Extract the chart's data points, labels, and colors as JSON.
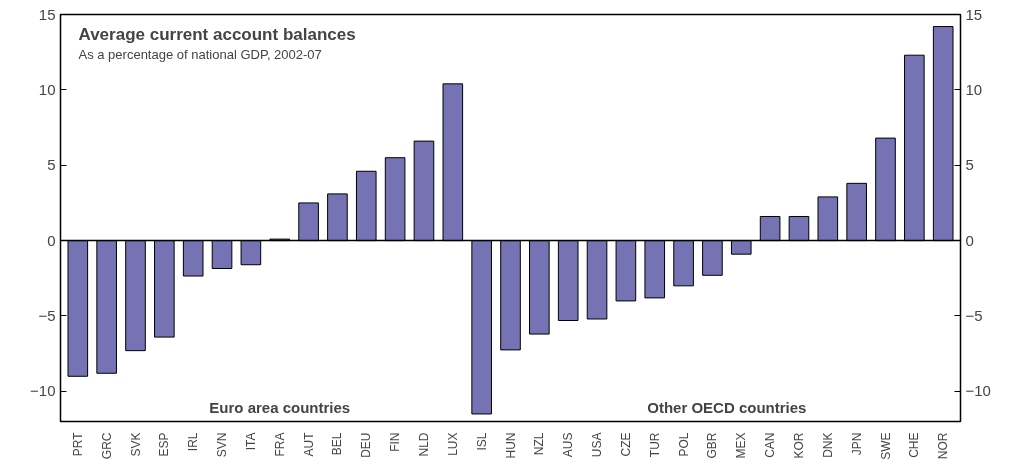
{
  "chart_data": {
    "type": "bar",
    "title": "Average current account balances",
    "subtitle": "As a percentage of national GDP, 2002-07",
    "categories": [
      "PRT",
      "GRC",
      "SVK",
      "ESP",
      "IRL",
      "SVN",
      "ITA",
      "FRA",
      "AUT",
      "BEL",
      "DEU",
      "FIN",
      "NLD",
      "LUX",
      "ISL",
      "HUN",
      "NZL",
      "AUS",
      "USA",
      "CZE",
      "TUR",
      "POL",
      "GBR",
      "MEX",
      "CAN",
      "KOR",
      "DNK",
      "JPN",
      "SWE",
      "CHE",
      "NOR"
    ],
    "values": [
      -9.0,
      -8.8,
      -7.3,
      -6.4,
      -2.35,
      -1.85,
      -1.6,
      0.1,
      2.5,
      3.1,
      4.6,
      5.5,
      6.6,
      10.4,
      -11.5,
      -7.25,
      -6.2,
      -5.3,
      -5.2,
      -4.0,
      -3.8,
      -3.0,
      -2.3,
      -0.9,
      1.6,
      1.6,
      2.9,
      3.8,
      6.8,
      12.3,
      14.2
    ],
    "color": "#7673b4",
    "ylim": [
      -12,
      15
    ],
    "yticks": [
      -10,
      -5,
      0,
      5,
      10,
      15
    ],
    "y2lim": [
      -12,
      15
    ],
    "y2ticks": [
      -10,
      -5,
      0,
      5,
      10,
      15
    ],
    "annotations": [
      "Euro area countries",
      "Other OECD countries"
    ],
    "ref_lines": [
      {
        "axis": "y",
        "value": 0,
        "color": "#000000"
      }
    ],
    "grid": false
  }
}
